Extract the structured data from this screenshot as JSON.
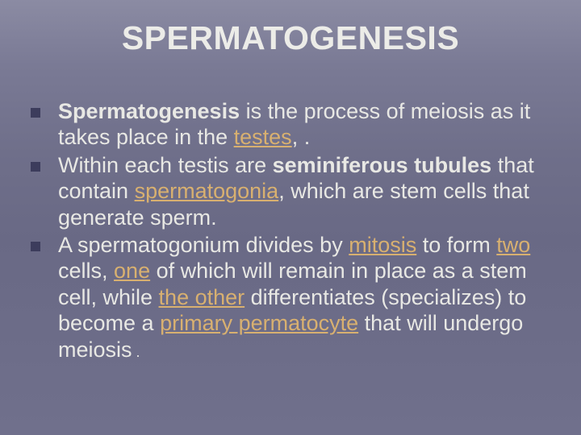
{
  "slide": {
    "background_gradient": [
      "#8b8ba3",
      "#7a7a95",
      "#6f6f8a",
      "#696985",
      "#6c6c88",
      "#70708c"
    ],
    "title": {
      "text": "SPERMATOGENESIS",
      "color": "#ecece8",
      "fontsize": 41,
      "weight": "bold"
    },
    "bullet_marker": {
      "size": 12,
      "color": "#3c3c5c"
    },
    "body_text": {
      "color": "#e8e8e4",
      "fontsize": 27,
      "accent_color": "#d8b070"
    },
    "bullets": [
      {
        "b1_bold": "Spermatogenesis",
        "b1_plain1": " is the process of meiosis as it takes place in the ",
        "b1_accent": "testes",
        "b1_tail": ", ."
      },
      {
        "b2_plain1": "Within each testis are ",
        "b2_bold": "seminiferous tubules",
        "b2_plain2": " that   contain ",
        "b2_accent": "spermatogonia",
        "b2_plain3": ", which are stem cells that generate sperm."
      },
      {
        "b3_plain1": " A spermatogonium divides by ",
        "b3_accent1": "mitosis",
        "b3_plain2": " to form ",
        "b3_accent2": "two",
        "b3_plain3": " cells, ",
        "b3_accent3": "one",
        "b3_plain4": " of which will remain in place as a  stem cell, while ",
        "b3_accent4": "the other",
        "b3_plain5": " differentiates (specializes) to   become a ",
        "b3_accent5": "primary permatocyte",
        "b3_plain6": " that will undergo meiosis",
        "b3_tail": " ."
      }
    ]
  }
}
